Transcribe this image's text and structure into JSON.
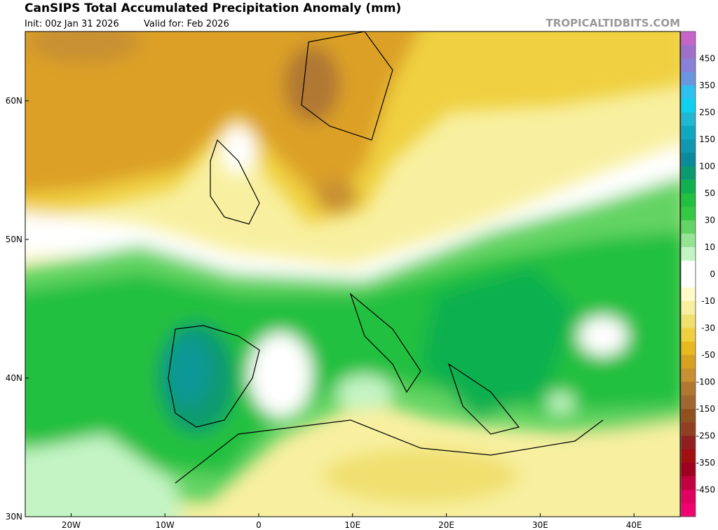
{
  "header": {
    "title": "CanSIPS Total Accumulated Precipitation Anomaly (mm)",
    "init": "Init: 00z Jan 31 2026",
    "valid": "Valid for: Feb 2026",
    "source": "TROPICALTIDBITS.COM"
  },
  "map": {
    "lon_ticks": [
      {
        "value": -20,
        "label": "20W"
      },
      {
        "value": -10,
        "label": "10W"
      },
      {
        "value": 0,
        "label": "0"
      },
      {
        "value": 10,
        "label": "10E"
      },
      {
        "value": 20,
        "label": "20E"
      },
      {
        "value": 30,
        "label": "30E"
      },
      {
        "value": 40,
        "label": "40E"
      }
    ],
    "lat_ticks": [
      {
        "value": 60,
        "label": "60N"
      },
      {
        "value": 50,
        "label": "50N"
      },
      {
        "value": 40,
        "label": "40N"
      },
      {
        "value": 30,
        "label": "30N"
      }
    ]
  },
  "colorbar": {
    "labels": [
      "450",
      "350",
      "250",
      "150",
      "100",
      "50",
      "30",
      "10",
      "0",
      "-10",
      "-30",
      "-50",
      "-100",
      "-150",
      "-250",
      "-350",
      "-450"
    ],
    "colors": [
      "#c864c8",
      "#a070c8",
      "#8a80d8",
      "#6a96e0",
      "#30c0f0",
      "#10d0f0",
      "#20b8d0",
      "#10a8c0",
      "#1098b0",
      "#0a8a9a",
      "#0a9a70",
      "#10b050",
      "#20c040",
      "#34c844",
      "#64d464",
      "#94e494",
      "#c4f4c4",
      "#ffffff",
      "#ffffff",
      "#fffac8",
      "#f8f0a0",
      "#f0e070",
      "#f0d040",
      "#e8b820",
      "#d8a020",
      "#c89030",
      "#b07830",
      "#a06830",
      "#905020",
      "#904020",
      "#902020",
      "#a01010",
      "#a00020",
      "#c00040",
      "#e00060",
      "#f00070"
    ]
  }
}
